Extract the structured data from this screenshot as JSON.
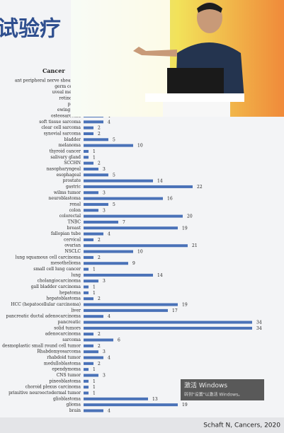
{
  "slide_title": "试验疗",
  "chart_data": {
    "type": "bar",
    "orientation": "horizontal",
    "header": "Cancer",
    "color": "#4a72b8",
    "categories": [
      "ant peripheral nerve sheath tu",
      "germ cell tu",
      "uveal melano",
      "retinoblas",
      "perito",
      "ewing sarc",
      "osteosarcoma",
      "soft tissue sarcoma",
      "clear cell sarcoma",
      "synovial sarcoma",
      "bladder",
      "melanoma",
      "thyroid cancer",
      "salivary gland",
      "SCCHN",
      "nasopharyngeal",
      "esophageal",
      "prostate",
      "gastric",
      "wilms tumor",
      "neuroblastoma",
      "renal",
      "colon",
      "colorectal",
      "TNBC",
      "breast",
      "fallopian tube",
      "cervical",
      "ovarian",
      "NSCLC",
      "lung squamous cell carcinoma",
      "mesothelioma",
      "small cell lung cancer",
      "lung",
      "cholangiocarcinoma",
      "gall bladder carcinoma",
      "hepatoma",
      "hepatoblastoma",
      "HCC (hepatocellular carcinoma)",
      "liver",
      "pancreatic ductal adenocarcinoma",
      "pancreatic",
      "solid tumors",
      "adenocarcinoma",
      "sarcoma",
      "desmoplastic small round cell tumor",
      "Rhabdomyosarcoma",
      "rhabdoid tumor",
      "medulloblastoma",
      "ependymoma",
      "CNS tumor",
      "pineoblastoma",
      "choroid plexus carcinoma",
      "primitive neuroectodermal tumor",
      "glioblastoma",
      "glioma",
      "brain"
    ],
    "values": [
      null,
      null,
      null,
      null,
      null,
      null,
      4,
      4,
      2,
      2,
      5,
      10,
      1,
      1,
      2,
      3,
      5,
      14,
      22,
      3,
      16,
      5,
      3,
      20,
      7,
      19,
      4,
      2,
      21,
      10,
      2,
      9,
      1,
      14,
      3,
      1,
      1,
      2,
      19,
      17,
      4,
      34,
      34,
      2,
      6,
      2,
      3,
      4,
      2,
      1,
      3,
      1,
      1,
      1,
      13,
      19,
      4
    ]
  },
  "watermark": {
    "line1": "激活 Windows",
    "line2": "转到\"设置\"以激活 Windows。"
  },
  "citation": "Schaft N, Cancers, 2020"
}
